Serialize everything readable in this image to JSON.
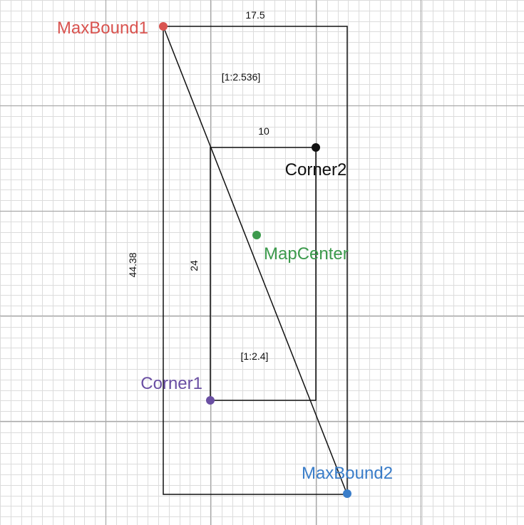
{
  "points": [
    {
      "id": "maxbound1",
      "label": "MaxBound1",
      "color": "#d9534f"
    },
    {
      "id": "maxbound2",
      "label": "MaxBound2",
      "color": "#3a7dc9"
    },
    {
      "id": "corner1",
      "label": "Corner1",
      "color": "#6a4fa3"
    },
    {
      "id": "corner2",
      "label": "Corner2",
      "color": "#111111"
    },
    {
      "id": "mapcenter",
      "label": "MapCenter",
      "color": "#3c9a4c"
    }
  ],
  "dimensions": {
    "outer_width": "17.5",
    "outer_height": "44.38",
    "outer_ratio": "[1:2.536]",
    "inner_width": "10",
    "inner_height": "24",
    "inner_ratio": "[1:2.4]"
  },
  "colors": {
    "grid_minor": "#dcdcdc",
    "grid_major": "#a9a9a9",
    "line": "#111111"
  }
}
